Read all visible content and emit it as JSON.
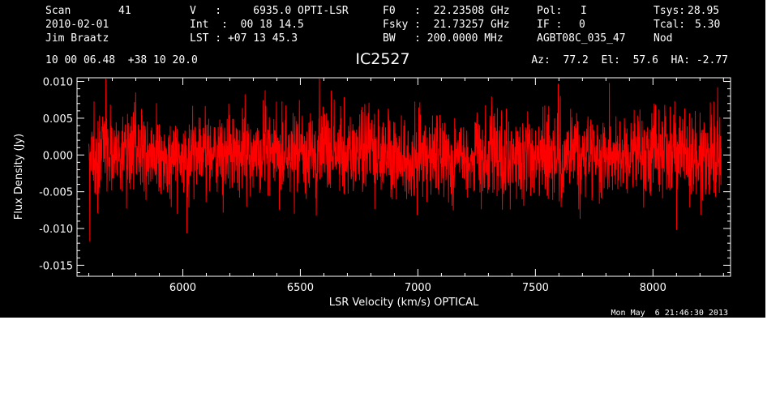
{
  "header": {
    "scan_label": "Scan",
    "scan_value": "41",
    "date": "2010-02-01",
    "observer": "Jim Braatz",
    "v_line": "V   :     6935.0 OPTI-LSR",
    "int_line": "Int  :  00 18 14.5",
    "lst_line": "LST : +07 13 45.3",
    "f0_line": "F0   :  22.23508 GHz",
    "fsky_line": "Fsky :  21.73257 GHz",
    "bw_line": "BW   : 200.0000 MHz",
    "pol_label": "Pol:",
    "pol_value": "I",
    "if_label": "IF :",
    "if_value": "0",
    "project": "AGBT08C_035_47",
    "tsys_label": "Tsys:",
    "tsys_value": "28.95",
    "tcal_label": "Tcal:",
    "tcal_value": "5.30",
    "mode": "Nod",
    "coords": "10 00 06.48  +38 10 20.0",
    "source": "IC2527",
    "az_el_ha": "Az:  77.2  El:  57.6  HA: -2.77"
  },
  "timestamp": "Mon May  6 21:46:30 2013",
  "chart_data": {
    "type": "line",
    "title": "IC2527",
    "xlabel": "LSR Velocity (km/s) OPTICAL",
    "ylabel": "Flux Density (Jy)",
    "xlim": [
      5550,
      8330
    ],
    "ylim": [
      -0.0165,
      0.0105
    ],
    "xticks": [
      6000,
      6500,
      7000,
      7500,
      8000
    ],
    "xtick_labels": [
      "6000",
      "6500",
      "7000",
      "7500",
      "8000"
    ],
    "yticks": [
      0.01,
      0.005,
      0.0,
      -0.005,
      -0.01,
      -0.015
    ],
    "ytick_labels": [
      "0.010",
      "0.005",
      "0.000",
      "-0.005",
      "-0.010",
      "-0.015"
    ],
    "series": [
      {
        "color": "#ff0000",
        "x_start": 5600,
        "x_end": 8290,
        "noise_rms_approx": 0.003,
        "baseline": 0.0,
        "notable_points": [
          {
            "x": 5605,
            "y": -0.0118
          },
          {
            "x": 5800,
            "y": 0.0085
          },
          {
            "x": 6350,
            "y": 0.0088
          },
          {
            "x": 8100,
            "y": -0.0102
          },
          {
            "x": 8275,
            "y": 0.0092
          }
        ]
      }
    ]
  }
}
